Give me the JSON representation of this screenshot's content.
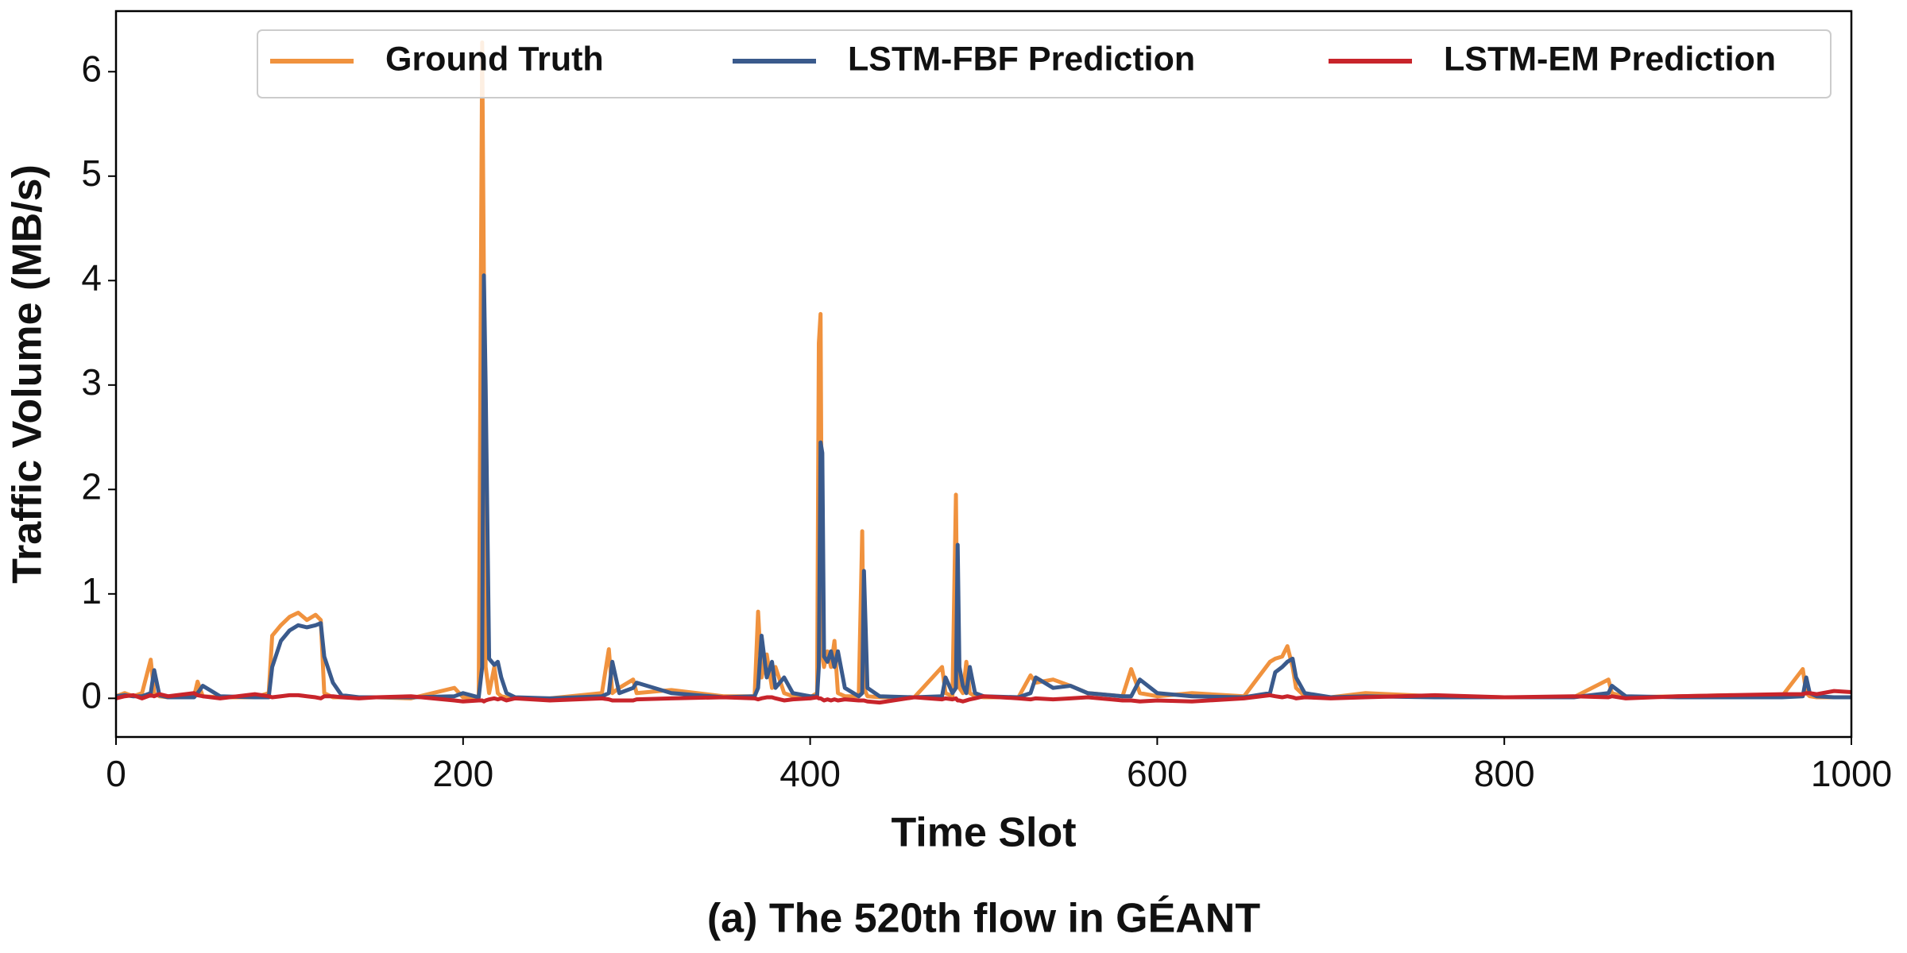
{
  "chart_data": {
    "type": "line",
    "caption": "(a) The 520th flow in GÉANT",
    "x_label": "Time Slot",
    "y_label": "Traffic Volume (MB/s)",
    "xlim": [
      0,
      1000
    ],
    "ylim": [
      -0.37,
      6.58
    ],
    "xticks": [
      0,
      200,
      400,
      600,
      800,
      1000
    ],
    "yticks": [
      0,
      1,
      2,
      3,
      4,
      5,
      6
    ],
    "grid": false,
    "legend": "upper right",
    "x": [
      0,
      5,
      10,
      15,
      20,
      22,
      25,
      30,
      45,
      47,
      50,
      60,
      80,
      88,
      90,
      95,
      100,
      105,
      110,
      115,
      118,
      120,
      125,
      130,
      140,
      150,
      170,
      195,
      200,
      209,
      211,
      212,
      213,
      215,
      218,
      220,
      222,
      225,
      230,
      250,
      280,
      284,
      286,
      290,
      298,
      300,
      320,
      350,
      368,
      370,
      372,
      375,
      378,
      380,
      385,
      390,
      400,
      404,
      405,
      406,
      407,
      408,
      410,
      412,
      414,
      416,
      420,
      428,
      430,
      431,
      433,
      440,
      460,
      476,
      478,
      482,
      484,
      485,
      486,
      488,
      490,
      492,
      495,
      500,
      520,
      527,
      530,
      540,
      550,
      560,
      580,
      585,
      590,
      600,
      620,
      650,
      665,
      668,
      672,
      675,
      678,
      680,
      685,
      700,
      720,
      760,
      800,
      840,
      860,
      862,
      870,
      900,
      930,
      960,
      972,
      974,
      976,
      980,
      990,
      1000
    ],
    "series": [
      {
        "name": "Ground Truth",
        "color": "#f0923e",
        "values": [
          0.02,
          0.05,
          0.02,
          0.05,
          0.37,
          0.05,
          0.02,
          0.01,
          0.02,
          0.16,
          0.02,
          0.01,
          0.01,
          0.05,
          0.6,
          0.7,
          0.78,
          0.82,
          0.75,
          0.8,
          0.75,
          0.05,
          0.01,
          0.01,
          0.01,
          0.01,
          0,
          0.1,
          0.01,
          0.01,
          6.28,
          4.0,
          0.3,
          0.05,
          0.3,
          0.05,
          0.02,
          0.01,
          0,
          0,
          0.05,
          0.47,
          0.05,
          0.1,
          0.18,
          0.05,
          0.08,
          0.02,
          0.02,
          0.83,
          0.2,
          0.42,
          0.1,
          0.3,
          0.05,
          0.02,
          0.01,
          0.05,
          3.4,
          3.68,
          0.4,
          0.3,
          0.45,
          0.3,
          0.55,
          0.05,
          0.02,
          0.02,
          1.6,
          0.1,
          0.02,
          0.01,
          0.01,
          0.3,
          0.05,
          0.02,
          1.95,
          0.3,
          0.1,
          0.05,
          0.35,
          0.05,
          0.02,
          0.01,
          0.01,
          0.22,
          0.15,
          0.18,
          0.12,
          0.05,
          0.02,
          0.28,
          0.05,
          0.02,
          0.05,
          0.02,
          0.35,
          0.38,
          0.4,
          0.5,
          0.3,
          0.1,
          0.02,
          0.01,
          0.05,
          0.02,
          0.01,
          0.01,
          0.18,
          0.05,
          0.01,
          0.02,
          0.03,
          0.02,
          0.28,
          0.05,
          0.02,
          0.01,
          0.01,
          0.01
        ]
      },
      {
        "name": "LSTM-FBF Prediction",
        "color": "#3a5a8c",
        "values": [
          0.02,
          0.03,
          0.02,
          0.02,
          0.05,
          0.27,
          0.03,
          0.01,
          0.01,
          0.05,
          0.12,
          0.02,
          0.01,
          0.01,
          0.3,
          0.55,
          0.65,
          0.7,
          0.68,
          0.7,
          0.72,
          0.4,
          0.15,
          0.03,
          0.01,
          0.01,
          0.01,
          0.02,
          0.05,
          0.01,
          0.3,
          4.05,
          3.0,
          0.38,
          0.32,
          0.35,
          0.2,
          0.05,
          0.01,
          0,
          0.02,
          0.05,
          0.35,
          0.05,
          0.1,
          0.15,
          0.05,
          0.01,
          0.02,
          0.1,
          0.6,
          0.2,
          0.35,
          0.1,
          0.2,
          0.05,
          0.02,
          0.02,
          0.3,
          2.45,
          2.35,
          0.4,
          0.35,
          0.45,
          0.3,
          0.45,
          0.1,
          0.02,
          0.05,
          1.22,
          0.1,
          0.02,
          0.01,
          0.02,
          0.2,
          0.05,
          0.1,
          1.47,
          0.3,
          0.12,
          0.05,
          0.3,
          0.05,
          0.02,
          0.01,
          0.05,
          0.2,
          0.1,
          0.12,
          0.05,
          0.02,
          0.02,
          0.18,
          0.05,
          0.02,
          0.01,
          0.05,
          0.25,
          0.3,
          0.35,
          0.38,
          0.2,
          0.05,
          0.01,
          0.02,
          0.01,
          0.01,
          0.01,
          0.05,
          0.12,
          0.02,
          0.01,
          0.01,
          0.01,
          0.02,
          0.2,
          0.05,
          0.02,
          0.01,
          0.01
        ]
      },
      {
        "name": "LSTM-EM Prediction",
        "color": "#c8242b",
        "values": [
          0,
          0.02,
          0.03,
          0,
          0.03,
          0.02,
          0.04,
          0.02,
          0.05,
          0.03,
          0.02,
          0,
          0.04,
          0.02,
          0.01,
          0.02,
          0.03,
          0.03,
          0.02,
          0.01,
          0,
          0.02,
          0.02,
          0.01,
          0,
          0.01,
          0.02,
          -0.02,
          -0.03,
          -0.02,
          -0.02,
          -0.03,
          -0.02,
          -0.01,
          0,
          -0.01,
          0,
          -0.02,
          0,
          -0.02,
          0,
          -0.01,
          -0.02,
          -0.02,
          -0.02,
          -0.01,
          0,
          0.01,
          0,
          -0.01,
          0,
          0.01,
          0.01,
          0,
          -0.02,
          -0.01,
          0,
          0.01,
          0,
          0,
          -0.01,
          -0.02,
          -0.01,
          -0.02,
          -0.01,
          -0.02,
          -0.01,
          -0.02,
          -0.02,
          -0.02,
          -0.03,
          -0.04,
          0.01,
          -0.01,
          0,
          -0.01,
          0,
          -0.02,
          -0.02,
          -0.03,
          -0.02,
          -0.01,
          0,
          0.02,
          0,
          -0.01,
          0,
          -0.01,
          0,
          0.01,
          -0.02,
          -0.02,
          -0.03,
          -0.02,
          -0.03,
          0,
          0.03,
          0.02,
          0.01,
          0.02,
          0.01,
          0,
          0.01,
          0,
          0.01,
          0.03,
          0.01,
          0.02,
          0.01,
          0.02,
          0,
          0.02,
          0.03,
          0.04,
          0.04,
          0.05,
          0.05,
          0.04,
          0.07,
          0.06
        ]
      }
    ]
  }
}
